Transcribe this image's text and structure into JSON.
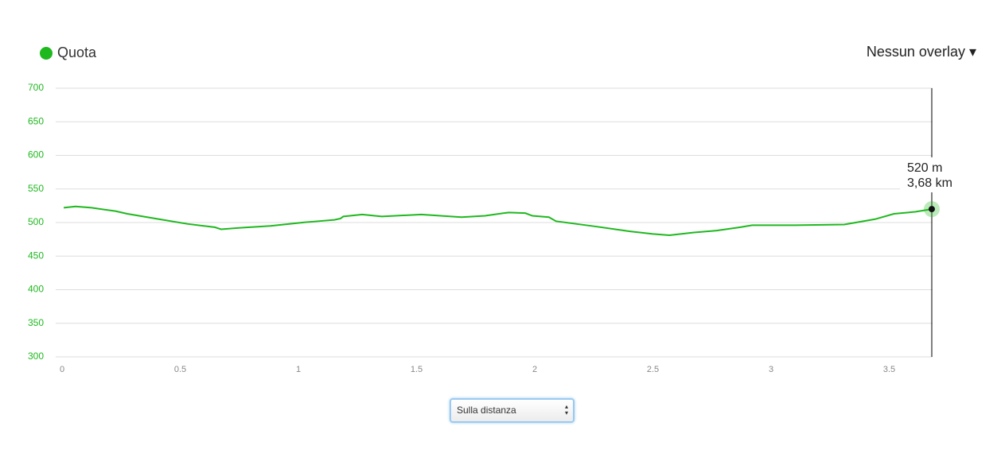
{
  "chart_data": {
    "type": "line",
    "legend_label": "Quota",
    "overlay_menu": "Nessun overlay",
    "mode_select": "Sulla distanza",
    "series": [
      {
        "name": "Quota",
        "color": "#1fb81f",
        "x": [
          0.007,
          0.057,
          0.125,
          0.226,
          0.276,
          0.41,
          0.53,
          0.646,
          0.673,
          0.747,
          0.882,
          1.017,
          1.084,
          1.152,
          1.178,
          1.19,
          1.27,
          1.353,
          1.52,
          1.69,
          1.79,
          1.89,
          1.96,
          1.99,
          2.06,
          2.09,
          2.26,
          2.4,
          2.5,
          2.57,
          2.67,
          2.77,
          2.87,
          2.92,
          3.1,
          3.31,
          3.44,
          3.52,
          3.61,
          3.68
        ],
        "values": [
          522,
          524,
          522,
          517,
          513,
          505,
          498,
          493,
          490,
          492,
          495,
          500,
          502,
          504,
          506,
          509,
          512,
          509,
          512,
          508,
          510,
          515,
          514,
          510,
          508,
          502,
          494,
          487,
          483,
          481,
          485,
          488,
          493,
          496,
          496,
          497,
          505,
          513,
          516,
          520
        ]
      }
    ],
    "xlim": [
      0,
      3.68
    ],
    "xticks": [
      0,
      0.5,
      1,
      1.5,
      2,
      2.5,
      3,
      3.5
    ],
    "ylim": [
      300,
      700
    ],
    "yticks": [
      300,
      350,
      400,
      450,
      500,
      550,
      600,
      650,
      700
    ],
    "grid": true,
    "crosshair": {
      "x": 3.68,
      "y": 520,
      "label_lines": [
        "520 m",
        "3,68 km"
      ]
    }
  }
}
